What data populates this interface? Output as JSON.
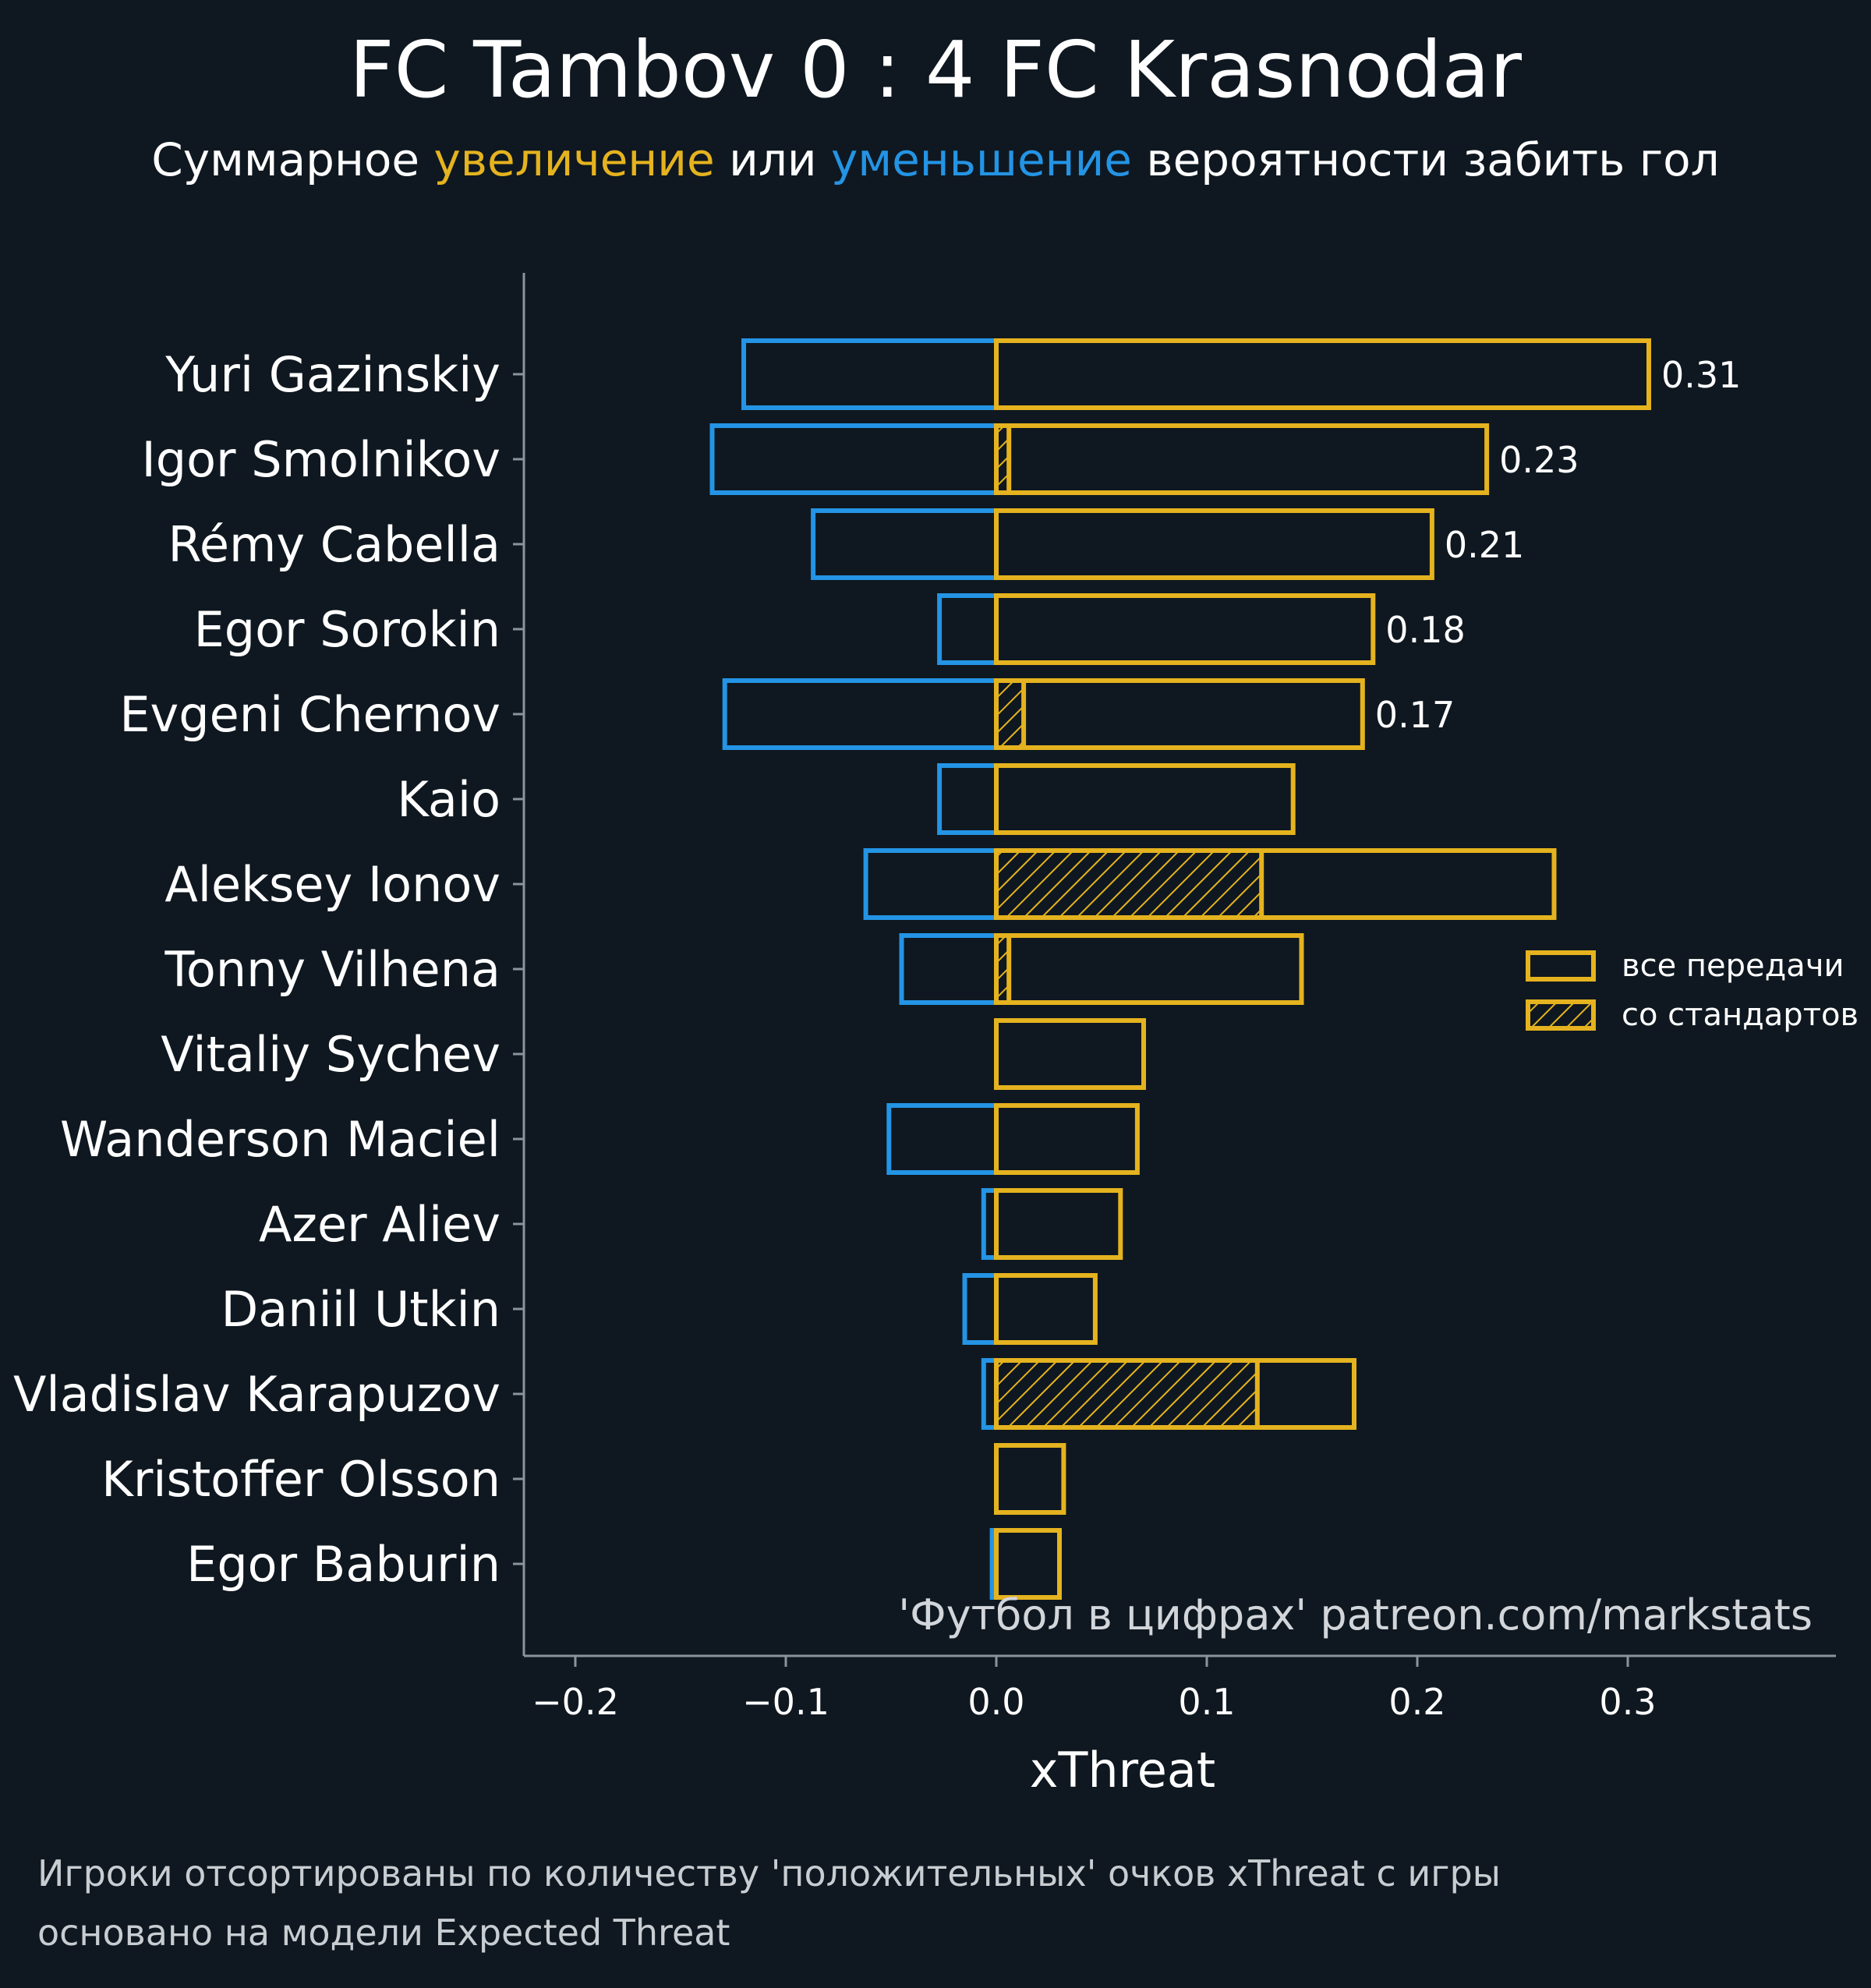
{
  "header": {
    "title": "FC Tambov 0 : 4 FC Krasnodar",
    "subtitle_parts": [
      "Суммарное ",
      "увеличение",
      " или ",
      "уменьшение",
      " вероятности забить гол"
    ]
  },
  "colors": {
    "background": "#0f1820",
    "increase": "#e5b31f",
    "decrease": "#2494e5",
    "axis": "#8a949c",
    "text": "#ffffff"
  },
  "chart_data": {
    "type": "bar",
    "orientation": "horizontal",
    "xlabel": "xThreat",
    "xlim": [
      -0.225,
      0.4
    ],
    "xticks": [
      -0.2,
      -0.1,
      0.0,
      0.1,
      0.2,
      0.3
    ],
    "xtick_labels": [
      "−0.2",
      "−0.1",
      "0.0",
      "0.1",
      "0.2",
      "0.3"
    ],
    "categories": [
      "Yuri Gazinskiy",
      "Igor Smolnikov",
      "Rémy Cabella",
      "Egor Sorokin",
      "Evgeni Chernov",
      "Kaio",
      "Aleksey Ionov",
      "Tonny Vilhena",
      "Vitaliy Sychev",
      "Wanderson Maciel",
      "Azer Aliev",
      "Daniil Utkin",
      "Vladislav Karapuzov",
      "Kristoffer Olsson",
      "Egor Baburin"
    ],
    "series": [
      {
        "name": "все передачи",
        "key": "positive",
        "values": [
          0.31,
          0.233,
          0.207,
          0.179,
          0.174,
          0.141,
          0.265,
          0.145,
          0.07,
          0.067,
          0.059,
          0.047,
          0.17,
          0.032,
          0.03
        ]
      },
      {
        "name": "со стандартов",
        "key": "set_pieces",
        "values": [
          0.0,
          0.006,
          0.0,
          0.0,
          0.013,
          0.0,
          0.126,
          0.006,
          0.0,
          0.0,
          0.0,
          0.0,
          0.124,
          0.0,
          0.0
        ]
      },
      {
        "key": "negative",
        "values": [
          -0.12,
          -0.135,
          -0.087,
          -0.027,
          -0.129,
          -0.027,
          -0.062,
          -0.045,
          0.0,
          -0.051,
          -0.006,
          -0.015,
          -0.006,
          0.0,
          -0.002
        ]
      }
    ],
    "data_labels": [
      "0.31",
      "0.23",
      "0.21",
      "0.18",
      "0.17",
      "",
      "",
      "",
      "",
      "",
      "",
      "",
      "",
      "",
      ""
    ],
    "legend": {
      "position": "right",
      "items": [
        "все передачи",
        "со стандартов"
      ]
    },
    "watermark": "'Футбол в цифрах' patreon.com/markstats",
    "grid": false
  },
  "footnote": [
    "Игроки отсортированы по количеству 'положительных' очков xThreat с игры",
    "основано на модели Expected Threat"
  ]
}
